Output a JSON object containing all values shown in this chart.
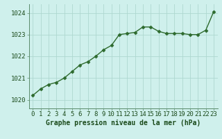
{
  "x": [
    0,
    1,
    2,
    3,
    4,
    5,
    6,
    7,
    8,
    9,
    10,
    11,
    12,
    13,
    14,
    15,
    16,
    17,
    18,
    19,
    20,
    21,
    22,
    23
  ],
  "y": [
    1020.2,
    1020.5,
    1020.7,
    1020.8,
    1021.0,
    1021.3,
    1021.6,
    1021.75,
    1022.0,
    1022.3,
    1022.5,
    1023.0,
    1023.05,
    1023.1,
    1023.35,
    1023.35,
    1023.15,
    1023.05,
    1023.05,
    1023.05,
    1023.0,
    1023.0,
    1023.2,
    1024.05
  ],
  "line_color": "#2d6a2d",
  "marker": "D",
  "marker_size": 2.5,
  "bg_color": "#cff0ec",
  "grid_color": "#aed8d0",
  "xlabel": "Graphe pression niveau de la mer (hPa)",
  "xlabel_color": "#1a4a1a",
  "xlabel_fontsize": 7.0,
  "tick_color": "#1a4a1a",
  "tick_fontsize": 6.5,
  "ylim": [
    1019.6,
    1024.4
  ],
  "yticks": [
    1020,
    1021,
    1022,
    1023,
    1024
  ],
  "xlim": [
    -0.5,
    23.5
  ],
  "xticks": [
    0,
    1,
    2,
    3,
    4,
    5,
    6,
    7,
    8,
    9,
    10,
    11,
    12,
    13,
    14,
    15,
    16,
    17,
    18,
    19,
    20,
    21,
    22,
    23
  ],
  "spine_color": "#5a8a6a",
  "linewidth": 1.0
}
